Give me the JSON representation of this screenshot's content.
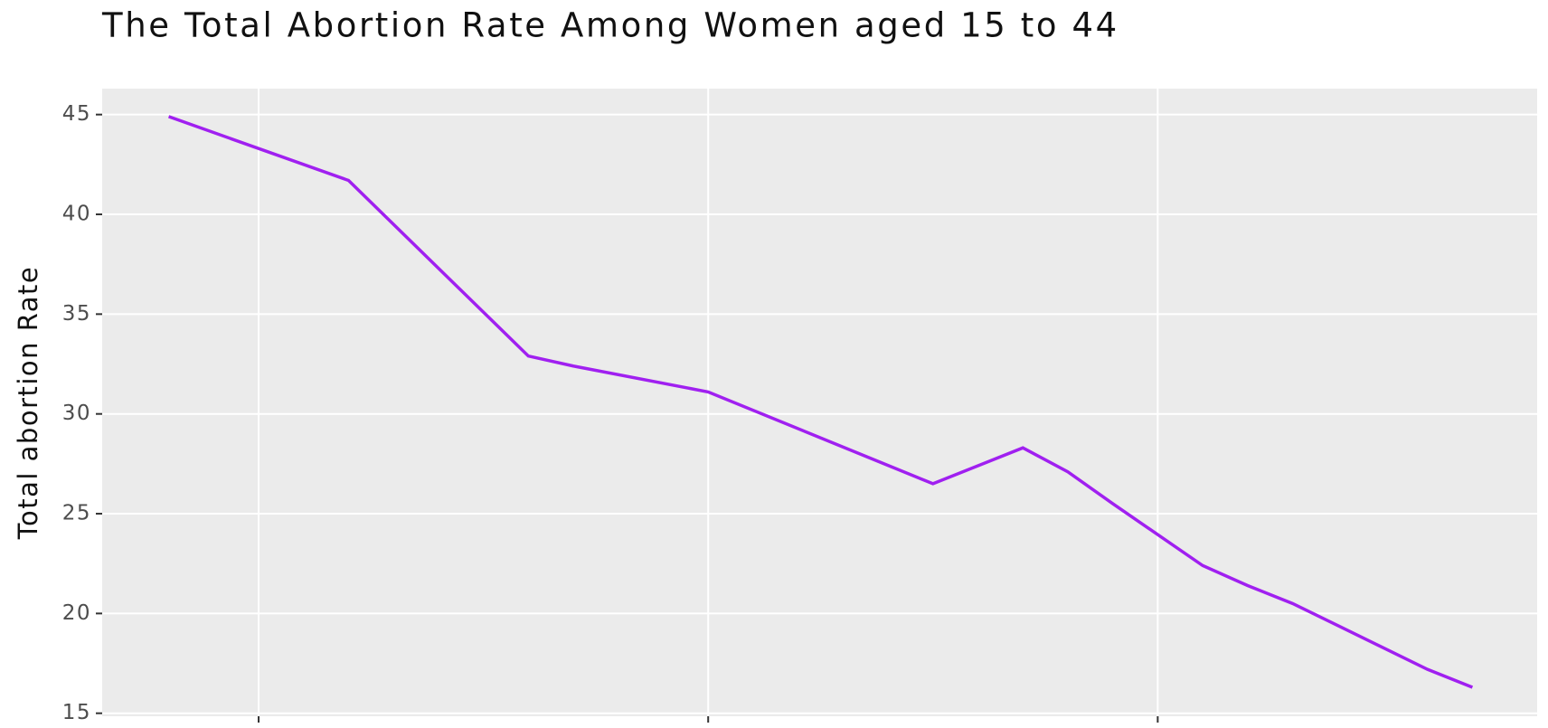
{
  "chart_data": {
    "type": "line",
    "title": "The Total Abortion Rate Among Women aged 15 to 44",
    "y_label": "Total abortion Rate",
    "x": [
      0,
      4,
      8,
      9,
      12,
      17,
      19,
      20,
      21,
      23,
      24,
      25,
      26,
      28,
      29
    ],
    "series": [
      {
        "name": "Total abortion Rate",
        "color": "#a020f0",
        "values": [
          44.9,
          41.7,
          32.9,
          32.4,
          31.1,
          26.5,
          28.3,
          27.1,
          25.5,
          22.4,
          21.4,
          20.5,
          19.4,
          17.2,
          16.3
        ]
      }
    ],
    "xlim": [
      -1.48,
      30.44
    ],
    "xticks": [
      2,
      12,
      22
    ],
    "ylim": [
      14.85,
      46.3
    ],
    "yticks": [
      15,
      20,
      25,
      30,
      35,
      40,
      45
    ],
    "grid": true
  }
}
